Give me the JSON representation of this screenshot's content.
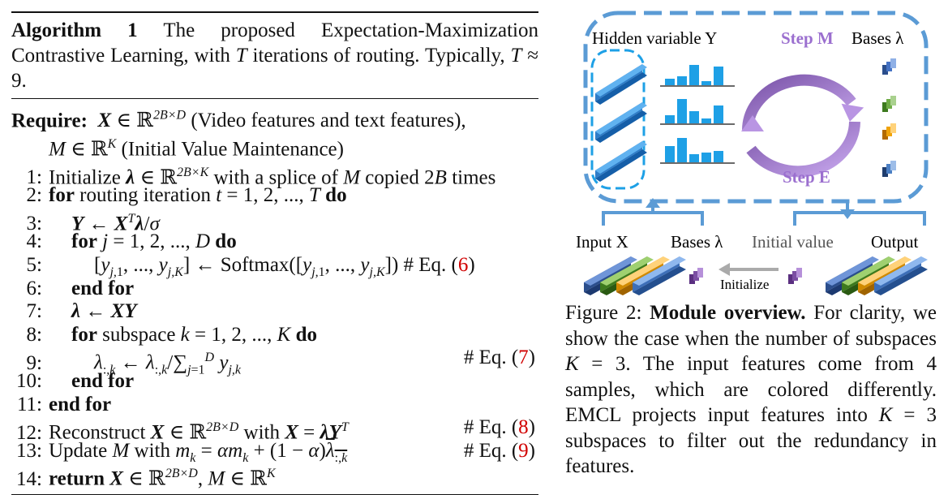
{
  "algorithm": {
    "label": "Algorithm 1",
    "caption": "The proposed Expectation-Maximization Contrastive Learning, with T iterations of routing. Typically, T ≈ 9.",
    "require_keyword": "Require:",
    "require_text": "X ∈ ℝ^{2B×D} (Video features and text features), M ∈ ℝ^K (Initial Value Maintenance)",
    "lines": [
      {
        "num": "1:",
        "text": "Initialize λ ∈ ℝ^{2B×K} with a splice of M copied 2B times",
        "eq": ""
      },
      {
        "num": "2:",
        "text": "for routing iteration t = 1, 2, ..., T do",
        "eq": ""
      },
      {
        "num": "3:",
        "text": "Y ← X^T λ/σ",
        "eq": ""
      },
      {
        "num": "4:",
        "text": "for j = 1, 2, ..., D do",
        "eq": ""
      },
      {
        "num": "5:",
        "text": "[y_{j,1}, ..., y_{j,K}] ← Softmax([y_{j,1}, ..., y_{j,K}])",
        "eq": "# Eq. (6)"
      },
      {
        "num": "6:",
        "text": "end for",
        "eq": ""
      },
      {
        "num": "7:",
        "text": "λ ← XY",
        "eq": ""
      },
      {
        "num": "8:",
        "text": "for subspace k = 1, 2, ..., K do",
        "eq": ""
      },
      {
        "num": "9:",
        "text": "λ_{:,k} ← λ_{:,k} / Σ_{j=1}^{D} y_{j,k}",
        "eq": "# Eq. (7)"
      },
      {
        "num": "10:",
        "text": "end for",
        "eq": ""
      },
      {
        "num": "11:",
        "text": "end for",
        "eq": ""
      },
      {
        "num": "12:",
        "text": "Reconstruct X ∈ ℝ^{2B×D} with X = λY^T",
        "eq": "# Eq. (8)"
      },
      {
        "num": "13:",
        "text": "Update M with m_k = αm_k + (1 − α)λ̄_{:,k}",
        "eq": "# Eq. (9)"
      },
      {
        "num": "14:",
        "text": "return X ∈ ℝ^{2B×D}, M ∈ ℝ^K",
        "eq": ""
      }
    ]
  },
  "figure": {
    "labels": {
      "hidden": "Hidden variable Y",
      "step_m": "Step M",
      "step_e": "Step E",
      "bases_top": "Bases λ",
      "input": "Input X",
      "bases_bottom": "Bases λ",
      "initial": "Initial value",
      "output": "Output",
      "initialize": "Initialize"
    },
    "caption_label": "Figure 2:",
    "caption_bold": "Module overview.",
    "caption_text": "For clarity, we show the case when the number of subspaces K = 3. The input features come from 4 samples, which are colored differently. EMCL projects input features into K = 3 subspaces to filter out the redundancy in features.",
    "colors": {
      "frame": "#5b9bd5",
      "bar": "#1ea0e6",
      "step": "#a77bd6",
      "purple_cube": "#7b4ea3",
      "green": "#70ad47",
      "orange": "#f0a30a",
      "blue": "#4472c4"
    }
  }
}
